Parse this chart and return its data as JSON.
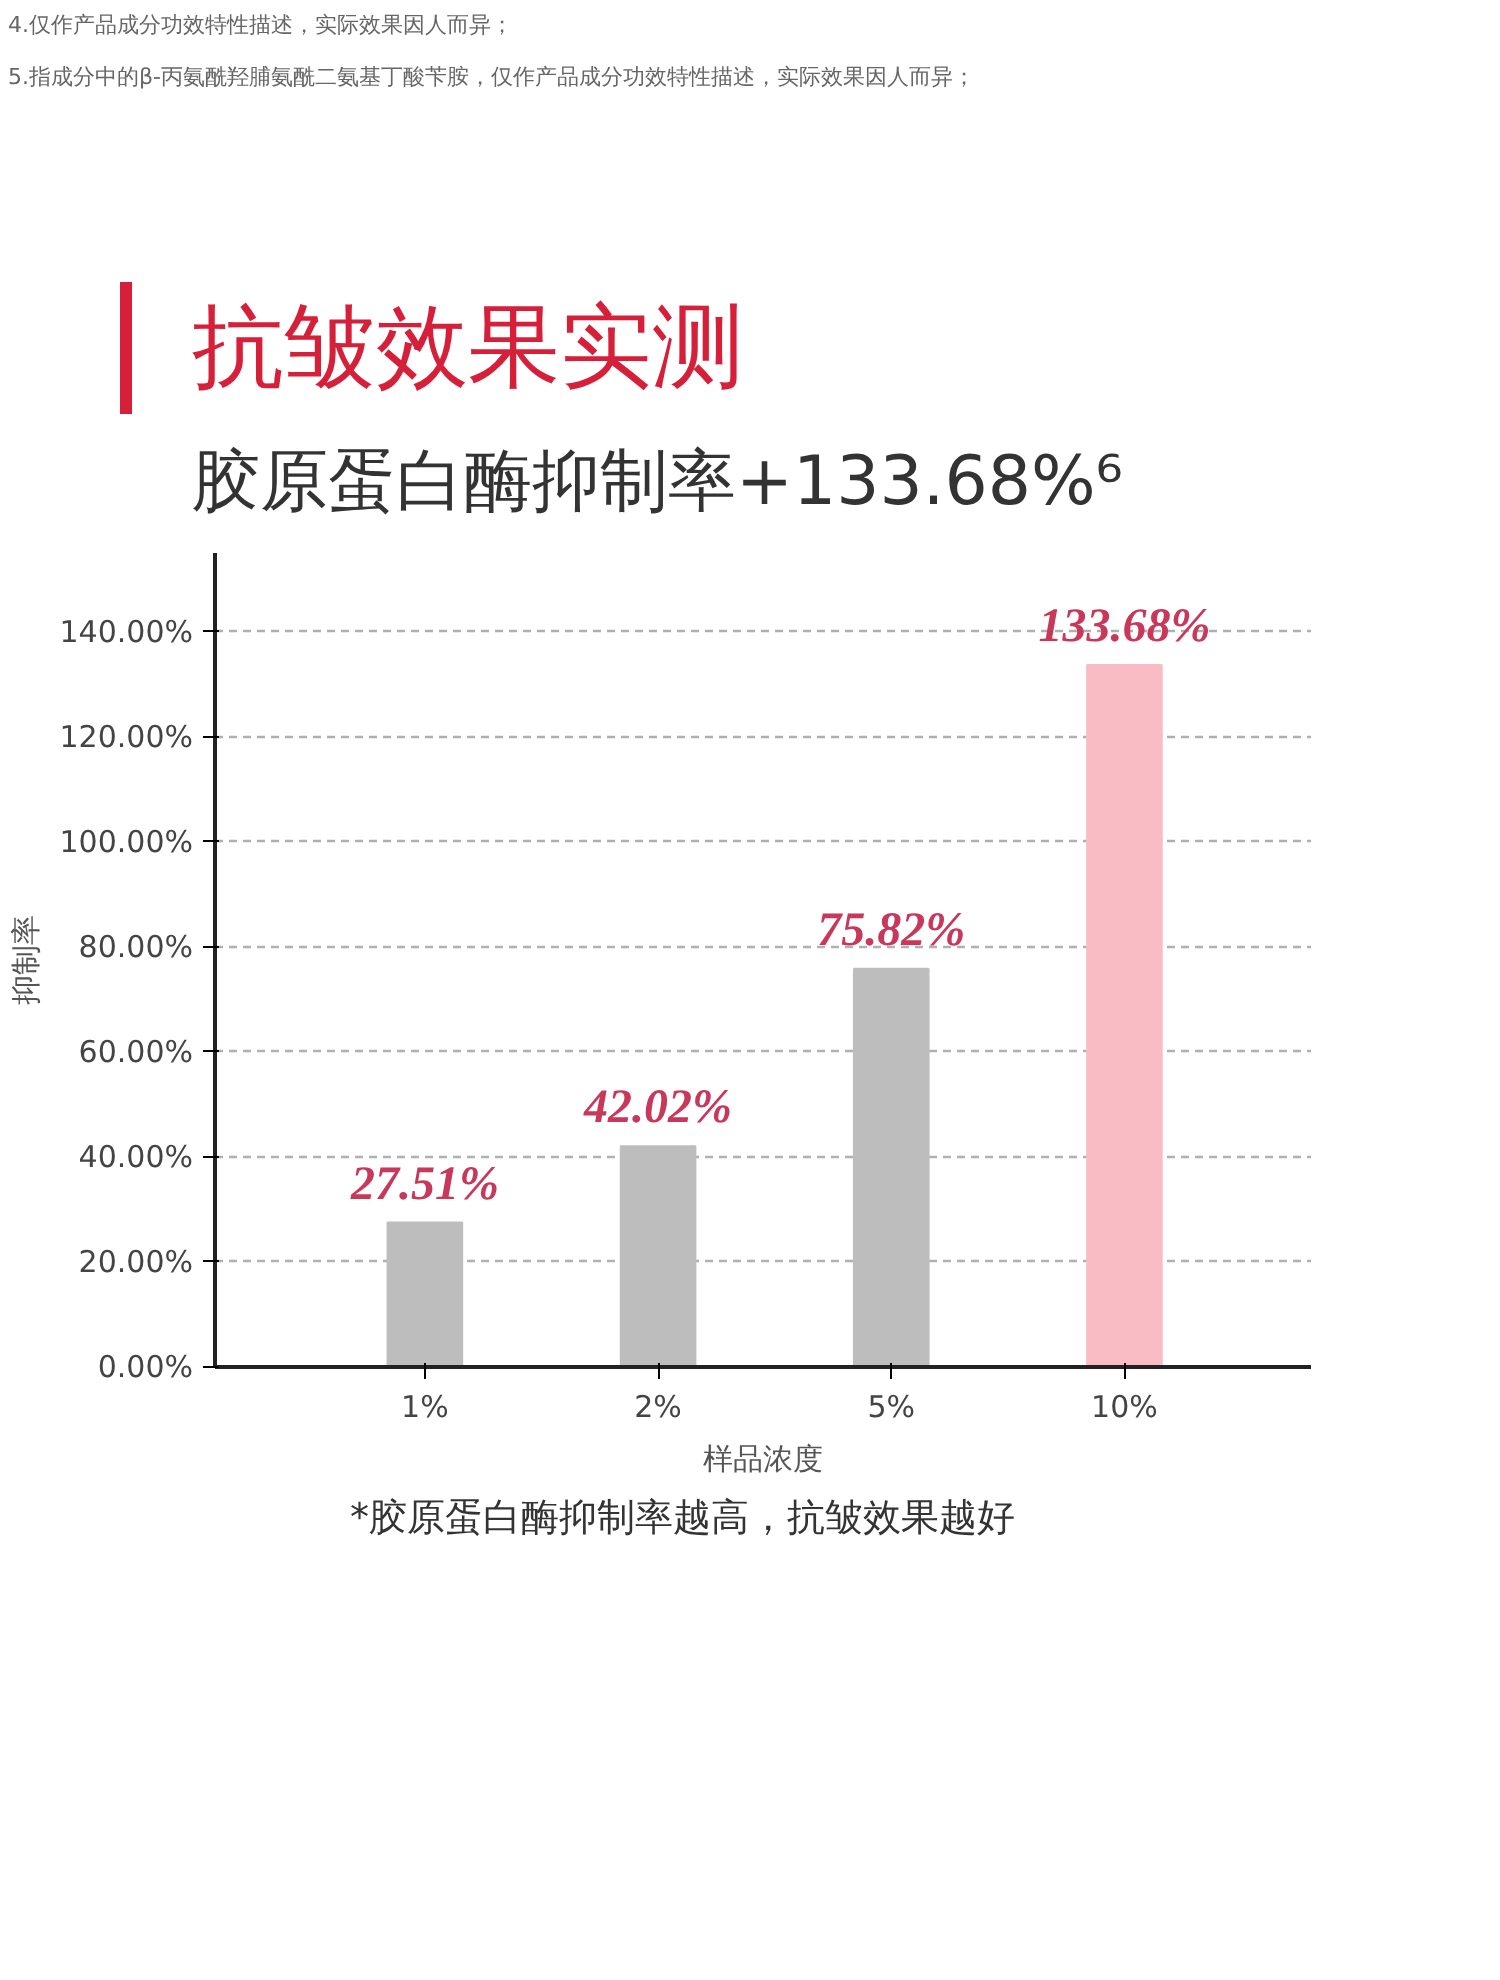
{
  "chart_data": {
    "type": "bar",
    "title": "抗皱效果实测",
    "subtitle": "胶原蛋白酶抑制率+133.68%⁶",
    "xlabel": "样品浓度",
    "ylabel": "抑制率",
    "categories": [
      "1%",
      "2%",
      "5%",
      "10%"
    ],
    "values": [
      27.51,
      42.02,
      75.82,
      133.68
    ],
    "colors": [
      "#bdbdbd",
      "#bdbdbd",
      "#bdbdbd",
      "#f9bcc5"
    ],
    "value_labels": [
      "27.51%",
      "42.02%",
      "75.82%",
      "133.68%"
    ],
    "ylim": [
      0,
      155
    ],
    "yticks": [
      {
        "value": 0,
        "label": "0.00%"
      },
      {
        "value": 20,
        "label": "20.00%"
      },
      {
        "value": 40,
        "label": "40.00%"
      },
      {
        "value": 60,
        "label": "60.00%"
      },
      {
        "value": 80,
        "label": "80.00%"
      },
      {
        "value": 100,
        "label": "100.00%"
      },
      {
        "value": 120,
        "label": "120.00%"
      },
      {
        "value": 140,
        "label": "140.00%"
      }
    ],
    "grid": "y",
    "annotations": [
      "4.仅作产品成分功效特性描述，实际效果因人而异；",
      "5.指成分中的β-丙氨酰羟脯氨酰二氨基丁酸苄胺，仅作产品成分功效特性描述，实际效果因人而异；",
      "*胶原蛋白酶抑制率越高，抗皱效果越好"
    ]
  }
}
